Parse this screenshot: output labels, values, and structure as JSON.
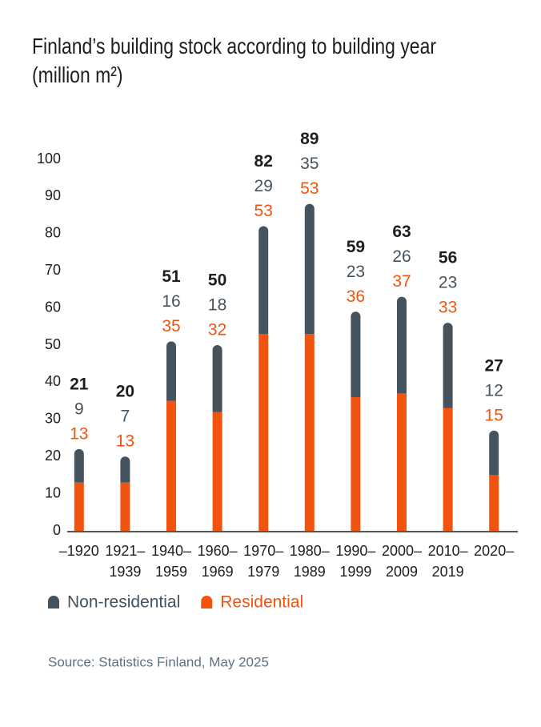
{
  "chart_data": {
    "type": "stacked_bar",
    "title": "Finland’s building stock according to building year (million m²)",
    "categories": [
      [
        "–1920"
      ],
      [
        "1921–",
        "1939"
      ],
      [
        "1940–",
        "1959"
      ],
      [
        "1960–",
        "1969"
      ],
      [
        "1970–",
        "1979"
      ],
      [
        "1980–",
        "1989"
      ],
      [
        "1990–",
        "1999"
      ],
      [
        "2000–",
        "2009"
      ],
      [
        "2010–",
        "2019"
      ],
      [
        "2020–"
      ]
    ],
    "series": [
      {
        "name": "Non-residential",
        "color": "#45535f",
        "values": [
          9,
          7,
          16,
          18,
          29,
          35,
          23,
          26,
          23,
          12
        ]
      },
      {
        "name": "Residential",
        "color": "#f0540f",
        "values": [
          13,
          13,
          35,
          32,
          53,
          53,
          36,
          37,
          33,
          15
        ]
      }
    ],
    "totals": [
      21,
      20,
      51,
      50,
      82,
      89,
      59,
      63,
      56,
      27
    ],
    "ylim": [
      0,
      100
    ],
    "yticks": [
      0,
      10,
      20,
      30,
      40,
      50,
      60,
      70,
      80,
      90,
      100
    ],
    "grid": false,
    "source": "Source: Statistics Finland, May 2025"
  }
}
